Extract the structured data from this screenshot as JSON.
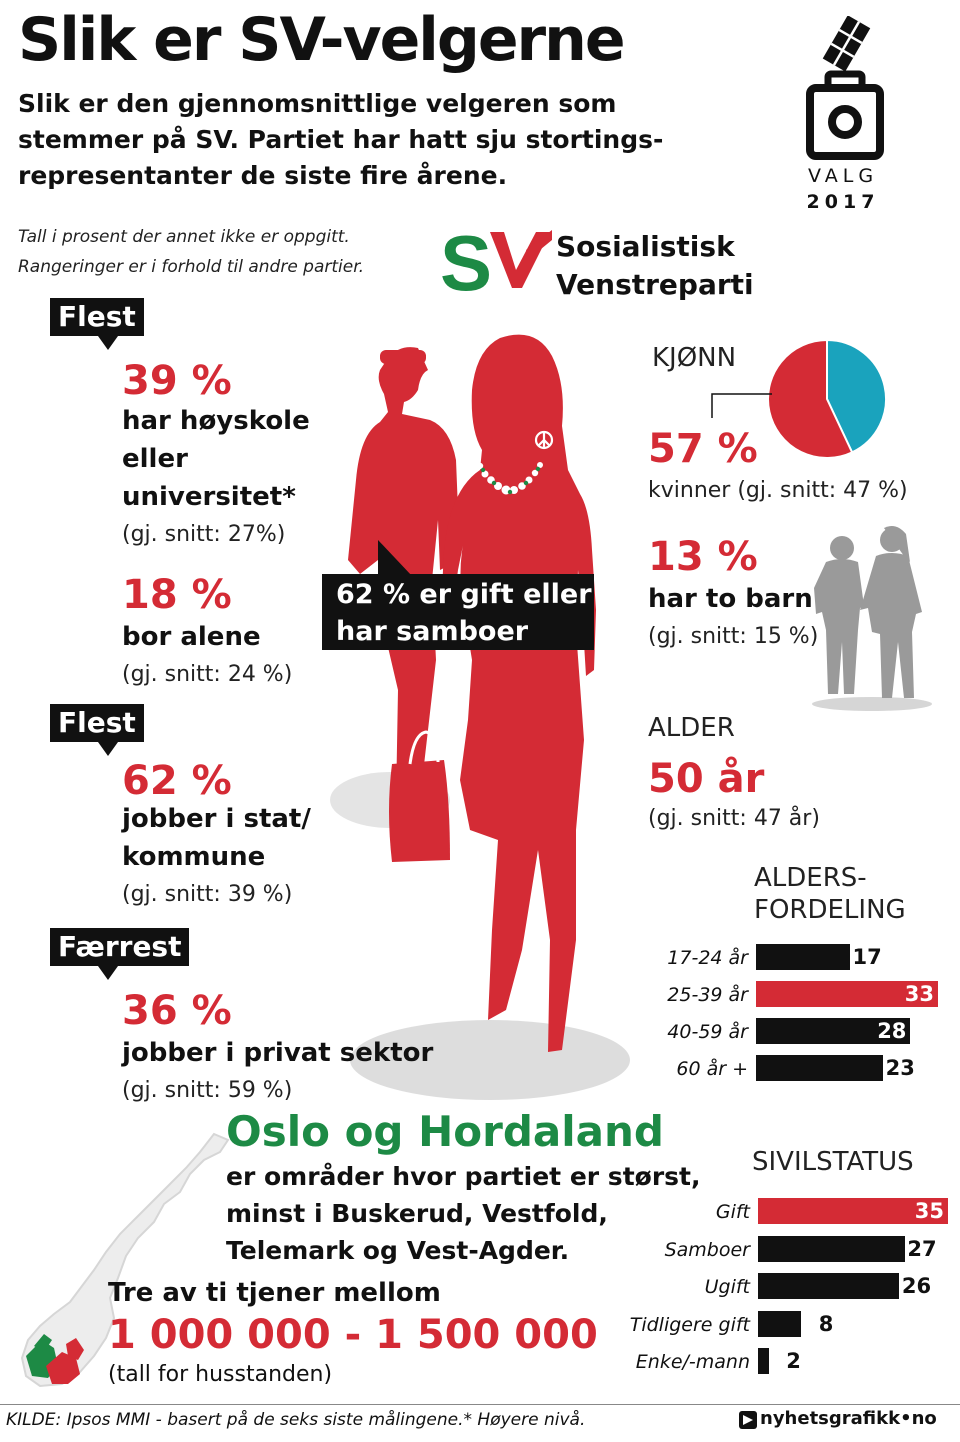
{
  "header": {
    "title": "Slik er SV-velgerne",
    "lead_lines": [
      "Slik er den gjennomsnittlige velgeren som",
      "stemmer på SV. Partiet har hatt sju stortings-",
      "representanter de siste fire årene."
    ],
    "note_lines": [
      "Tall i prosent der annet ikke er oppgitt.",
      "Rangeringer er i forhold til andre partier."
    ],
    "valg_label": "VALG",
    "valg_year": "2017"
  },
  "party": {
    "logo_text": "SV",
    "name_lines": [
      "Sosialistisk",
      "Venstreparti"
    ]
  },
  "stats": {
    "education": {
      "tag": "Flest",
      "value": "39 %",
      "lines": [
        "har høyskole",
        "eller",
        "universitet*"
      ],
      "avg": "(gj. snitt: 27%)"
    },
    "alone": {
      "value": "18 %",
      "lines": [
        "bor alene"
      ],
      "avg": "(gj. snitt: 24 %)"
    },
    "public": {
      "tag": "Flest",
      "value": "62 %",
      "lines": [
        "jobber i stat/",
        "kommune"
      ],
      "avg": "(gj. snitt: 39 %)"
    },
    "private": {
      "tag": "Færrest",
      "value": "36 %",
      "lines": [
        "jobber i privat sektor"
      ],
      "avg": "(gj. snitt: 59 %)"
    },
    "married_callout": [
      "62 % er gift eller",
      "har samboer"
    ],
    "gender": {
      "heading": "KJØNN",
      "value": "57 %",
      "text": "kvinner (gj. snitt: 47 %)"
    },
    "children": {
      "value": "13 %",
      "text": "har to barn",
      "avg": "(gj. snitt: 15 %)"
    },
    "age": {
      "heading": "ALDER",
      "value": "50 år",
      "avg": "(gj. snitt: 47 år)"
    }
  },
  "region": {
    "title": "Oslo og Hordaland",
    "lines": [
      "er områder hvor partiet er størst,",
      "minst i Buskerud, Vestfold,",
      "Telemark og Vest-Agder."
    ]
  },
  "income": {
    "lead": "Tre av ti tjener mellom",
    "value": "1 000 000 - 1 500 000",
    "note": "(tall for husstanden)"
  },
  "footer": {
    "source": "KILDE: Ipsos MMI - basert på de seks siste målingene.* Høyere  nivå.",
    "credit": "nyhetsgrafikk•no"
  },
  "colors": {
    "red": "#d42b35",
    "green": "#1d8a45",
    "teal": "#1aa3bd",
    "black": "#111111",
    "gray": "#9a9a9a"
  },
  "chart_data": [
    {
      "type": "pie",
      "title": "KJØNN",
      "slices": [
        {
          "label": "kvinner",
          "value": 57,
          "color": "#d42b35"
        },
        {
          "label": "",
          "value": 43,
          "color": "#1aa3bd"
        }
      ]
    },
    {
      "type": "bar",
      "orientation": "horizontal",
      "title_lines": [
        "ALDERS-",
        "FORDELING"
      ],
      "categories": [
        "17-24 år",
        "25-39 år",
        "40-59 år",
        "60 år +"
      ],
      "values": [
        17,
        33,
        28,
        23
      ],
      "highlight": "25-39 år",
      "xlim": [
        0,
        33
      ]
    },
    {
      "type": "bar",
      "orientation": "horizontal",
      "title_lines": [
        "SIVILSTATUS"
      ],
      "categories": [
        "Gift",
        "Samboer",
        "Ugift",
        "Tidligere gift",
        "Enke/-mann"
      ],
      "values": [
        35,
        27,
        26,
        8,
        2
      ],
      "highlight": "Gift",
      "xlim": [
        0,
        35
      ]
    }
  ]
}
